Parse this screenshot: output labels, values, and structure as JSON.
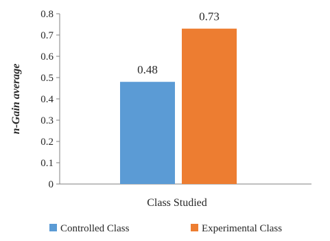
{
  "chart_data": {
    "type": "bar",
    "categories": [
      "Class Studied"
    ],
    "series": [
      {
        "name": "Controlled Class",
        "values": [
          0.48
        ],
        "color": "#5b9bd5"
      },
      {
        "name": "Experimental Class",
        "values": [
          0.73
        ],
        "color": "#ed7d31"
      }
    ],
    "data_labels": [
      "0.48",
      "0.73"
    ],
    "title": "",
    "xlabel": "Class Studied",
    "ylabel": "n-Gain average",
    "ylim": [
      0,
      0.8
    ],
    "yticks": [
      "0",
      "0.1",
      "0.2",
      "0.3",
      "0.4",
      "0.5",
      "0.6",
      "0.7",
      "0.8"
    ],
    "grid": false,
    "legend": "bottom"
  }
}
